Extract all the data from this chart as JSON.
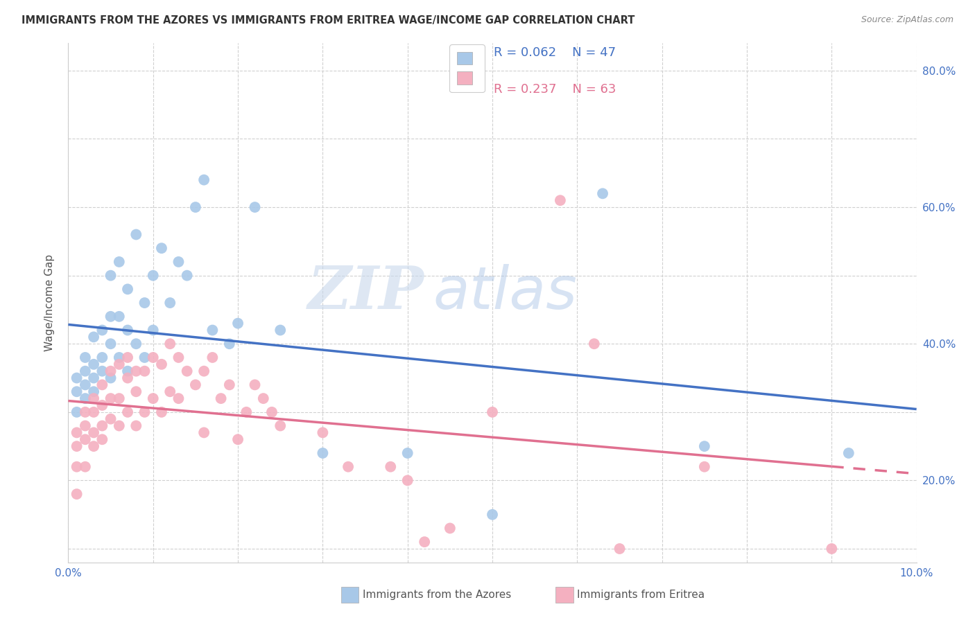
{
  "title": "IMMIGRANTS FROM THE AZORES VS IMMIGRANTS FROM ERITREA WAGE/INCOME GAP CORRELATION CHART",
  "source": "Source: ZipAtlas.com",
  "ylabel": "Wage/Income Gap",
  "x_min": 0.0,
  "x_max": 0.1,
  "y_min": 0.08,
  "y_max": 0.84,
  "x_ticks": [
    0.0,
    0.02,
    0.04,
    0.06,
    0.08,
    0.1
  ],
  "x_tick_labels": [
    "0.0%",
    "",
    "",
    "",
    "",
    "10.0%"
  ],
  "y_ticks": [
    0.2,
    0.4,
    0.6,
    0.8
  ],
  "y_tick_labels": [
    "20.0%",
    "40.0%",
    "60.0%",
    "80.0%"
  ],
  "legend_r_blue": "R = 0.062",
  "legend_n_blue": "N = 47",
  "legend_r_pink": "R = 0.237",
  "legend_n_pink": "N = 63",
  "blue_color": "#a8c8e8",
  "pink_color": "#f4b0c0",
  "blue_line_color": "#4472c4",
  "pink_line_color": "#e07090",
  "watermark_zip": "ZIP",
  "watermark_atlas": "atlas",
  "blue_scatter_x": [
    0.001,
    0.001,
    0.001,
    0.002,
    0.002,
    0.002,
    0.002,
    0.003,
    0.003,
    0.003,
    0.003,
    0.004,
    0.004,
    0.004,
    0.005,
    0.005,
    0.005,
    0.005,
    0.006,
    0.006,
    0.006,
    0.007,
    0.007,
    0.007,
    0.008,
    0.008,
    0.009,
    0.009,
    0.01,
    0.01,
    0.011,
    0.012,
    0.013,
    0.014,
    0.015,
    0.016,
    0.017,
    0.019,
    0.02,
    0.022,
    0.025,
    0.03,
    0.04,
    0.05,
    0.063,
    0.075,
    0.092
  ],
  "blue_scatter_y": [
    0.33,
    0.35,
    0.3,
    0.34,
    0.32,
    0.36,
    0.38,
    0.33,
    0.35,
    0.37,
    0.41,
    0.36,
    0.38,
    0.42,
    0.35,
    0.4,
    0.44,
    0.5,
    0.38,
    0.44,
    0.52,
    0.36,
    0.42,
    0.48,
    0.4,
    0.56,
    0.38,
    0.46,
    0.42,
    0.5,
    0.54,
    0.46,
    0.52,
    0.5,
    0.6,
    0.64,
    0.42,
    0.4,
    0.43,
    0.6,
    0.42,
    0.24,
    0.24,
    0.15,
    0.62,
    0.25,
    0.24
  ],
  "pink_scatter_x": [
    0.001,
    0.001,
    0.001,
    0.001,
    0.002,
    0.002,
    0.002,
    0.002,
    0.003,
    0.003,
    0.003,
    0.003,
    0.004,
    0.004,
    0.004,
    0.004,
    0.005,
    0.005,
    0.005,
    0.006,
    0.006,
    0.006,
    0.007,
    0.007,
    0.007,
    0.008,
    0.008,
    0.008,
    0.009,
    0.009,
    0.01,
    0.01,
    0.011,
    0.011,
    0.012,
    0.012,
    0.013,
    0.013,
    0.014,
    0.015,
    0.016,
    0.016,
    0.017,
    0.018,
    0.019,
    0.02,
    0.021,
    0.022,
    0.023,
    0.024,
    0.025,
    0.03,
    0.033,
    0.038,
    0.04,
    0.042,
    0.045,
    0.05,
    0.058,
    0.062,
    0.065,
    0.075,
    0.09
  ],
  "pink_scatter_y": [
    0.27,
    0.25,
    0.22,
    0.18,
    0.26,
    0.28,
    0.3,
    0.22,
    0.27,
    0.3,
    0.25,
    0.32,
    0.28,
    0.31,
    0.34,
    0.26,
    0.29,
    0.32,
    0.36,
    0.28,
    0.32,
    0.37,
    0.3,
    0.35,
    0.38,
    0.28,
    0.33,
    0.36,
    0.3,
    0.36,
    0.32,
    0.38,
    0.3,
    0.37,
    0.33,
    0.4,
    0.32,
    0.38,
    0.36,
    0.34,
    0.36,
    0.27,
    0.38,
    0.32,
    0.34,
    0.26,
    0.3,
    0.34,
    0.32,
    0.3,
    0.28,
    0.27,
    0.22,
    0.22,
    0.2,
    0.11,
    0.13,
    0.3,
    0.61,
    0.4,
    0.1,
    0.22,
    0.1
  ]
}
